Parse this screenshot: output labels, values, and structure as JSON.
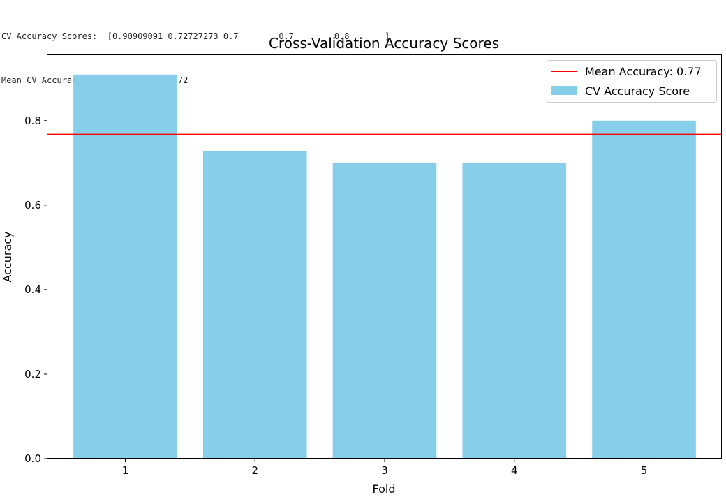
{
  "console_output": {
    "lines": [
      "CV Accuracy Scores:  [0.90909091 0.72727273 0.7        0.7        0.8       ]",
      "Mean CV Accuracy:  0.7672727272727272"
    ]
  },
  "chart_data": {
    "type": "bar",
    "title": "Cross-Validation Accuracy Scores",
    "xlabel": "Fold",
    "ylabel": "Accuracy",
    "categories": [
      "1",
      "2",
      "3",
      "4",
      "5"
    ],
    "series": [
      {
        "name": "CV Accuracy Score",
        "values": [
          0.90909091,
          0.72727273,
          0.7,
          0.7,
          0.8
        ],
        "color": "#87ceeb"
      }
    ],
    "mean_line": {
      "name": "Mean Accuracy: 0.77",
      "value": 0.7672727272727272,
      "color": "#ff0000"
    },
    "ylim": [
      0,
      0.955
    ],
    "yticks": [
      0.0,
      0.2,
      0.4,
      0.6,
      0.8
    ],
    "ytick_labels": [
      "0.0",
      "0.2",
      "0.4",
      "0.6",
      "0.8"
    ],
    "grid": false,
    "legend_position": "top-right"
  }
}
